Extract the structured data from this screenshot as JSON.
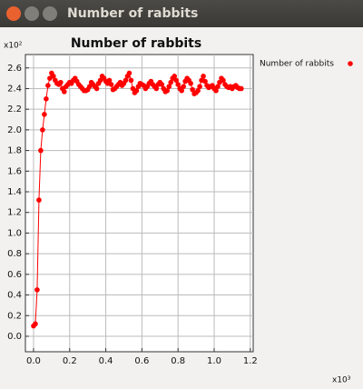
{
  "window": {
    "title": "Number of rabbits"
  },
  "chart_data": {
    "type": "line",
    "title": "Number of rabbits",
    "y_multiplier": "x10²",
    "x_multiplier": "x10³",
    "xlim": [
      -0.045,
      1.216
    ],
    "ylim": [
      -0.15,
      2.73
    ],
    "xticks": [
      {
        "value": 0,
        "label": "0.0"
      },
      0.2,
      0.4,
      0.6,
      0.8,
      {
        "value": 1,
        "label": "1.0"
      },
      1.2
    ],
    "yticks": [
      {
        "value": 0,
        "label": "0.0"
      },
      0.2,
      0.4,
      0.6,
      0.8,
      {
        "value": 1,
        "label": "1.0"
      },
      1.2,
      1.4,
      1.6,
      1.8,
      {
        "value": 2,
        "label": "2.0"
      },
      2.2,
      2.4,
      2.6
    ],
    "grid": true,
    "legend": "right",
    "series": [
      {
        "name": "Number of rabbits",
        "color": "#ff0000",
        "x": [
          0,
          0.01,
          0.02,
          0.03,
          0.04,
          0.05,
          0.06,
          0.07,
          0.08,
          0.09,
          0.1,
          0.11,
          0.12,
          0.13,
          0.14,
          0.15,
          0.16,
          0.17,
          0.18,
          0.19,
          0.2,
          0.21,
          0.22,
          0.23,
          0.24,
          0.25,
          0.26,
          0.27,
          0.28,
          0.29,
          0.3,
          0.31,
          0.32,
          0.33,
          0.34,
          0.35,
          0.36,
          0.37,
          0.38,
          0.39,
          0.4,
          0.41,
          0.42,
          0.43,
          0.44,
          0.45,
          0.46,
          0.47,
          0.48,
          0.49,
          0.5,
          0.51,
          0.52,
          0.53,
          0.54,
          0.55,
          0.56,
          0.57,
          0.58,
          0.59,
          0.6,
          0.61,
          0.62,
          0.63,
          0.64,
          0.65,
          0.66,
          0.67,
          0.68,
          0.69,
          0.7,
          0.71,
          0.72,
          0.73,
          0.74,
          0.75,
          0.76,
          0.77,
          0.78,
          0.79,
          0.8,
          0.81,
          0.82,
          0.83,
          0.84,
          0.85,
          0.86,
          0.87,
          0.88,
          0.89,
          0.9,
          0.91,
          0.92,
          0.93,
          0.94,
          0.95,
          0.96,
          0.97,
          0.98,
          0.99,
          1,
          1.01,
          1.02,
          1.03,
          1.04,
          1.05,
          1.06,
          1.07,
          1.08,
          1.09,
          1.1,
          1.11,
          1.12,
          1.13,
          1.14,
          1.15
        ],
        "values": [
          0.1,
          0.12,
          0.45,
          1.32,
          1.8,
          2.0,
          2.15,
          2.3,
          2.43,
          2.5,
          2.55,
          2.52,
          2.48,
          2.45,
          2.44,
          2.46,
          2.4,
          2.37,
          2.42,
          2.44,
          2.46,
          2.45,
          2.48,
          2.5,
          2.47,
          2.44,
          2.42,
          2.4,
          2.38,
          2.38,
          2.39,
          2.42,
          2.46,
          2.44,
          2.42,
          2.4,
          2.45,
          2.48,
          2.52,
          2.5,
          2.47,
          2.45,
          2.48,
          2.44,
          2.39,
          2.4,
          2.42,
          2.44,
          2.46,
          2.43,
          2.45,
          2.48,
          2.52,
          2.55,
          2.48,
          2.4,
          2.36,
          2.38,
          2.42,
          2.45,
          2.44,
          2.43,
          2.4,
          2.42,
          2.45,
          2.47,
          2.44,
          2.42,
          2.4,
          2.44,
          2.46,
          2.44,
          2.4,
          2.37,
          2.38,
          2.42,
          2.46,
          2.5,
          2.52,
          2.48,
          2.44,
          2.4,
          2.38,
          2.42,
          2.47,
          2.5,
          2.48,
          2.45,
          2.39,
          2.35,
          2.36,
          2.38,
          2.42,
          2.48,
          2.52,
          2.47,
          2.43,
          2.41,
          2.42,
          2.43,
          2.4,
          2.38,
          2.42,
          2.46,
          2.5,
          2.48,
          2.44,
          2.42,
          2.41,
          2.42,
          2.4,
          2.42,
          2.43,
          2.41,
          2.4,
          2.4
        ]
      }
    ]
  }
}
